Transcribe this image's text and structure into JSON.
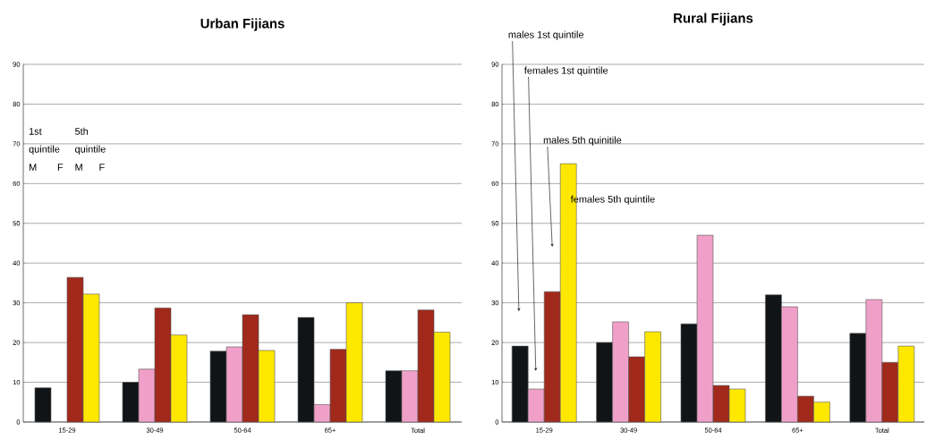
{
  "chart_data": [
    {
      "type": "bar",
      "title": "Urban Fijians",
      "categories": [
        "15-29",
        "30-49",
        "50-64",
        "65+",
        "Total"
      ],
      "series": [
        {
          "color": "#111417",
          "values": [
            8.6,
            10,
            17.8,
            26.3,
            12.9
          ]
        },
        {
          "color": "#f0a0c8",
          "values": [
            null,
            13.3,
            18.9,
            4.4,
            12.9
          ]
        },
        {
          "color": "#a0291c",
          "values": [
            36.4,
            28.7,
            27,
            18.3,
            28.2
          ]
        },
        {
          "color": "#ffe800",
          "values": [
            32.2,
            21.9,
            18,
            30,
            22.6
          ]
        }
      ],
      "ylim": [
        0,
        90
      ],
      "yticks": [
        0,
        10,
        20,
        30,
        40,
        50,
        60,
        70,
        80,
        90
      ],
      "grid": "y",
      "annotations": [
        "1st",
        "quintile",
        "M",
        "F",
        "5th",
        "quintile",
        "M",
        "F"
      ]
    },
    {
      "type": "bar",
      "title": "Rural Fijians",
      "categories": [
        "15-29",
        "30-49",
        "50-64",
        "65+",
        "Total"
      ],
      "series": [
        {
          "color": "#111417",
          "values": [
            19.1,
            20,
            24.7,
            32,
            22.3
          ]
        },
        {
          "color": "#f0a0c8",
          "values": [
            8.3,
            25.2,
            47,
            29,
            30.8
          ]
        },
        {
          "color": "#a0291c",
          "values": [
            32.8,
            16.4,
            9.2,
            6.5,
            15
          ]
        },
        {
          "color": "#ffe800",
          "values": [
            65,
            22.7,
            8.3,
            5,
            19.1
          ]
        }
      ],
      "ylim": [
        0,
        90
      ],
      "yticks": [
        0,
        10,
        20,
        30,
        40,
        50,
        60,
        70,
        80,
        90
      ],
      "grid": "y",
      "annotations": [
        "males 1st quintile",
        "females 1st quintile",
        "males 5th quinitile",
        "females 5th quintile"
      ]
    }
  ]
}
